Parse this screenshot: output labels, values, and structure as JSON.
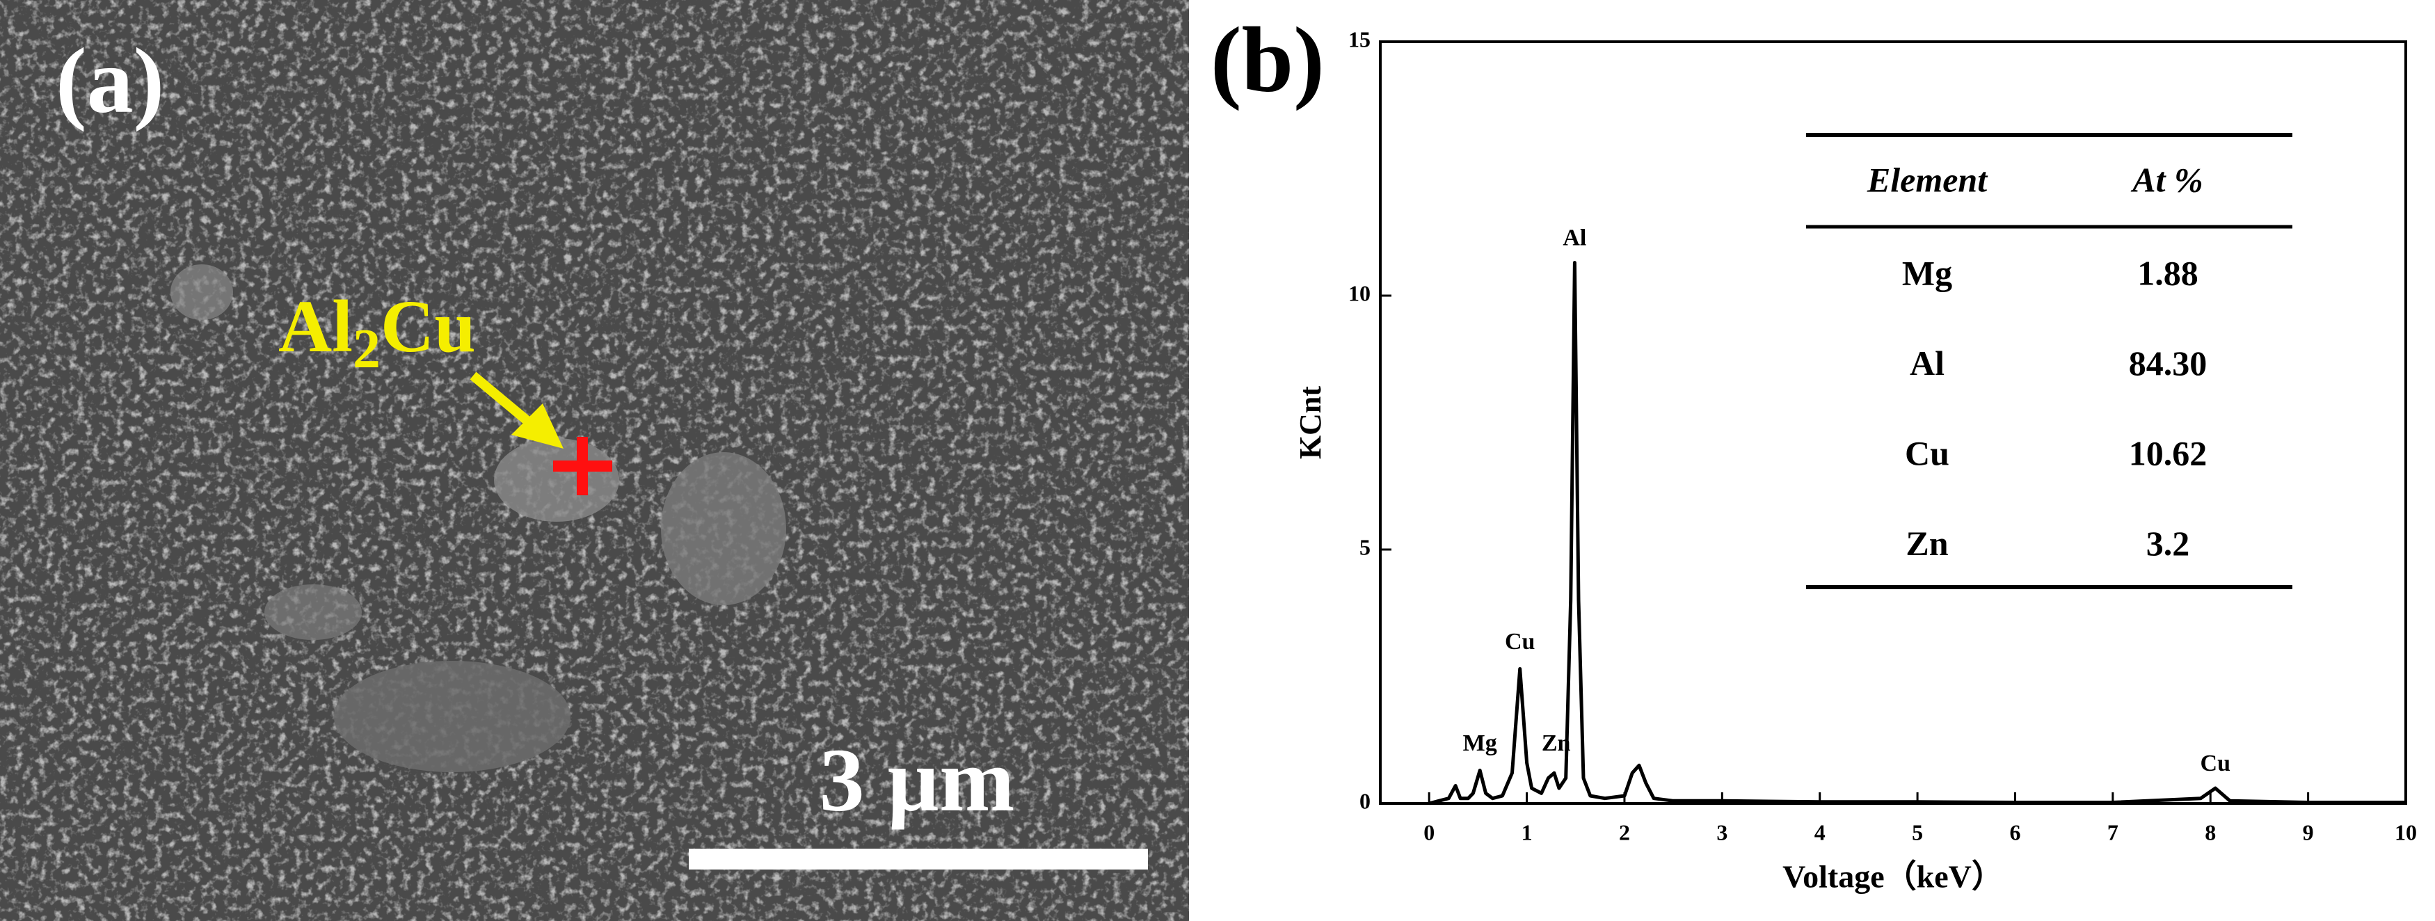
{
  "panel_a": {
    "label": "(a)",
    "phase": {
      "main": "Al",
      "sub": "2",
      "tail": "Cu"
    },
    "scale_bar": "3 µm"
  },
  "chart_data": {
    "type": "line",
    "panel_label": "(b)",
    "y_label": "KCnt",
    "x_label": "Voltage（keV）",
    "x": [
      0,
      0.1,
      0.2,
      0.27,
      0.32,
      0.4,
      0.45,
      0.52,
      0.58,
      0.65,
      0.75,
      0.85,
      0.93,
      1.0,
      1.05,
      1.15,
      1.22,
      1.28,
      1.33,
      1.4,
      1.45,
      1.49,
      1.53,
      1.58,
      1.65,
      1.8,
      2.0,
      2.08,
      2.15,
      2.22,
      2.3,
      2.5,
      3,
      4,
      5,
      6,
      7,
      7.9,
      8.05,
      8.2,
      9,
      10
    ],
    "values": [
      0,
      0.05,
      0.1,
      0.35,
      0.1,
      0.1,
      0.2,
      0.65,
      0.2,
      0.1,
      0.15,
      0.6,
      2.65,
      0.8,
      0.3,
      0.2,
      0.5,
      0.6,
      0.3,
      0.5,
      4,
      10.65,
      4,
      0.5,
      0.15,
      0.1,
      0.15,
      0.6,
      0.75,
      0.4,
      0.1,
      0.05,
      0.05,
      0.03,
      0.03,
      0.02,
      0.02,
      0.1,
      0.3,
      0.05,
      0.02,
      0.02
    ],
    "color": "#000000",
    "xlim": [
      -0.5,
      10
    ],
    "xticks": [
      0,
      1,
      2,
      3,
      4,
      5,
      6,
      7,
      8,
      9,
      10
    ],
    "ylim": [
      0,
      15
    ],
    "yticks": [
      0,
      5,
      10,
      15
    ],
    "annotations": [
      {
        "text": "Mg",
        "x": 0.52,
        "y": 1.15
      },
      {
        "text": "Cu",
        "x": 0.93,
        "y": 3.15
      },
      {
        "text": "Zn",
        "x": 1.3,
        "y": 1.15
      },
      {
        "text": "Al",
        "x": 1.49,
        "y": 11.1
      },
      {
        "text": "Cu",
        "x": 8.05,
        "y": 0.75
      }
    ],
    "table": {
      "header": [
        "Element",
        "At %"
      ],
      "rows": [
        [
          "Mg",
          "1.88"
        ],
        [
          "Al",
          "84.30"
        ],
        [
          "Cu",
          "10.62"
        ],
        [
          "Zn",
          "3.2"
        ]
      ]
    }
  }
}
